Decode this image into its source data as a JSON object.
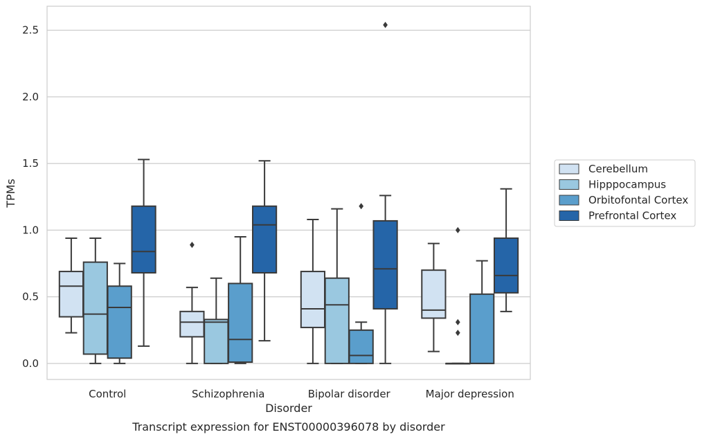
{
  "chart_data": {
    "type": "box",
    "caption": "Transcript expression for ENST00000396078 by disorder",
    "xlabel": "Disorder",
    "ylabel": "TPMs",
    "ylim": [
      -0.12,
      2.68
    ],
    "yticks": [
      "0.0",
      "0.5",
      "1.0",
      "1.5",
      "2.0",
      "2.5"
    ],
    "ytick_values": [
      0.0,
      0.5,
      1.0,
      1.5,
      2.0,
      2.5
    ],
    "grid": true,
    "legend_position": "right",
    "categories": [
      "Control",
      "Schizophrenia",
      "Bipolar disorder",
      "Major depression"
    ],
    "series": [
      {
        "name": "Cerebellum",
        "color": "#d1e2f2",
        "boxes": [
          {
            "whislo": 0.23,
            "q1": 0.35,
            "med": 0.58,
            "q3": 0.69,
            "whishi": 0.94,
            "fliers": []
          },
          {
            "whislo": 0.0,
            "q1": 0.2,
            "med": 0.31,
            "q3": 0.39,
            "whishi": 0.57,
            "fliers": [
              0.89
            ]
          },
          {
            "whislo": 0.0,
            "q1": 0.27,
            "med": 0.41,
            "q3": 0.69,
            "whishi": 1.08,
            "fliers": []
          },
          {
            "whislo": 0.09,
            "q1": 0.34,
            "med": 0.4,
            "q3": 0.7,
            "whishi": 0.9,
            "fliers": []
          }
        ]
      },
      {
        "name": "Hipppocampus",
        "color": "#9ac8e0",
        "boxes": [
          {
            "whislo": 0.0,
            "q1": 0.07,
            "med": 0.37,
            "q3": 0.76,
            "whishi": 0.94,
            "fliers": []
          },
          {
            "whislo": 0.0,
            "q1": 0.0,
            "med": 0.31,
            "q3": 0.33,
            "whishi": 0.64,
            "fliers": []
          },
          {
            "whislo": 0.0,
            "q1": 0.0,
            "med": 0.44,
            "q3": 0.64,
            "whishi": 1.16,
            "fliers": []
          },
          {
            "whislo": 0.0,
            "q1": 0.0,
            "med": 0.0,
            "q3": 0.0,
            "whishi": 0.0,
            "fliers": [
              0.23,
              0.31,
              1.0
            ]
          }
        ]
      },
      {
        "name": "Orbitofontal Cortex",
        "color": "#5a9ecc",
        "boxes": [
          {
            "whislo": 0.0,
            "q1": 0.04,
            "med": 0.42,
            "q3": 0.58,
            "whishi": 0.75,
            "fliers": []
          },
          {
            "whislo": 0.0,
            "q1": 0.01,
            "med": 0.18,
            "q3": 0.6,
            "whishi": 0.95,
            "fliers": []
          },
          {
            "whislo": 0.0,
            "q1": 0.0,
            "med": 0.06,
            "q3": 0.25,
            "whishi": 0.31,
            "fliers": [
              1.18
            ]
          },
          {
            "whislo": 0.0,
            "q1": 0.0,
            "med": 0.0,
            "q3": 0.52,
            "whishi": 0.77,
            "fliers": []
          }
        ]
      },
      {
        "name": "Prefrontal Cortex",
        "color": "#2565a8",
        "boxes": [
          {
            "whislo": 0.13,
            "q1": 0.68,
            "med": 0.84,
            "q3": 1.18,
            "whishi": 1.53,
            "fliers": []
          },
          {
            "whislo": 0.17,
            "q1": 0.68,
            "med": 1.04,
            "q3": 1.18,
            "whishi": 1.52,
            "fliers": []
          },
          {
            "whislo": 0.0,
            "q1": 0.41,
            "med": 0.71,
            "q3": 1.07,
            "whishi": 1.26,
            "fliers": [
              2.54
            ]
          },
          {
            "whislo": 0.39,
            "q1": 0.53,
            "med": 0.66,
            "q3": 0.94,
            "whishi": 1.31,
            "fliers": []
          }
        ]
      }
    ]
  }
}
